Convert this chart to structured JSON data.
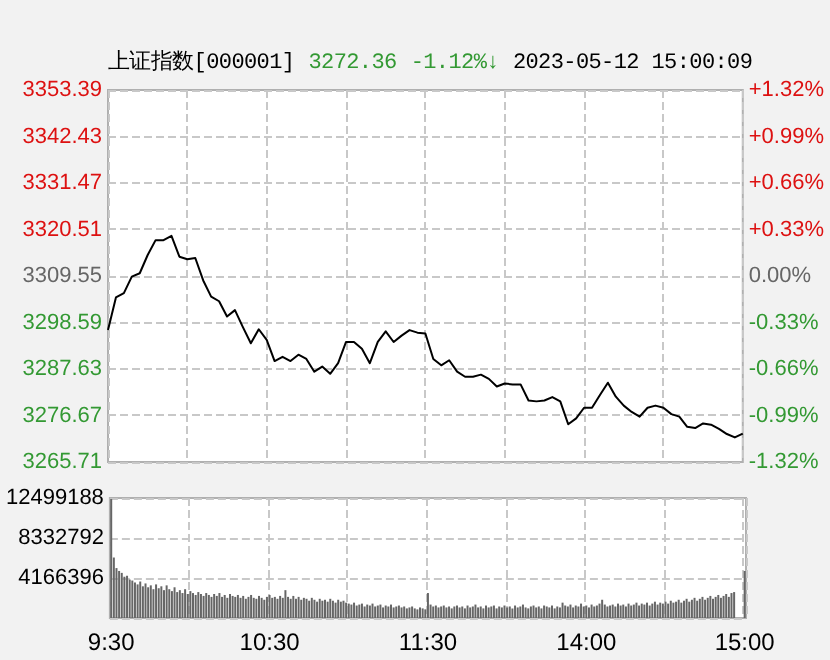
{
  "chart_data": [
    {
      "type": "line",
      "title": "上证指数[000001]",
      "annotations": [
        "3272.36",
        "-1.12%↓",
        "2023-05-12 15:00:09"
      ],
      "categories": [
        null,
        null,
        null,
        null,
        null,
        null,
        null,
        null,
        null,
        null,
        null,
        null,
        null,
        null,
        null,
        null,
        null,
        null,
        null,
        null,
        null,
        null,
        null,
        null,
        null,
        null,
        null,
        null,
        null,
        null,
        null,
        null,
        null,
        null,
        null,
        null,
        null,
        null,
        null,
        null,
        null,
        null,
        null,
        null,
        null,
        null,
        null,
        null,
        null,
        null,
        null,
        null,
        null,
        null,
        null,
        null,
        null,
        null,
        null,
        null,
        null,
        null,
        null,
        null,
        null,
        null,
        null,
        null,
        null,
        null,
        null,
        null,
        null,
        null,
        null,
        null,
        null,
        null,
        null,
        null,
        null
      ],
      "series": [
        {
          "color": "#000000",
          "values": [
            3296.8,
            3304.5,
            3305.5,
            3309.4,
            3310.2,
            3314.5,
            3318.0,
            3318.0,
            3319.0,
            3314.1,
            3313.5,
            3313.8,
            3308.5,
            3304.7,
            3303.6,
            3300.0,
            3301.5,
            3297.5,
            3293.7,
            3297.0,
            3294.5,
            3289.5,
            3290.5,
            3289.5,
            3291.0,
            3290.0,
            3287.0,
            3288.2,
            3286.5,
            3289.0,
            3294.0,
            3294.0,
            3292.4,
            3289.0,
            3294.0,
            3296.5,
            3294.0,
            3295.5,
            3296.8,
            3296.2,
            3296.0,
            3290.0,
            3288.5,
            3289.7,
            3287.0,
            3285.8,
            3285.8,
            3286.3,
            3285.3,
            3283.5,
            3284.2,
            3284.0,
            3284.0,
            3280.2,
            3280.0,
            3280.2,
            3281.0,
            3280.0,
            3274.6,
            3276.0,
            3278.5,
            3278.5,
            3281.5,
            3284.4,
            3281.1,
            3279.0,
            3277.5,
            3276.4,
            3278.5,
            3279.0,
            3278.5,
            3277.0,
            3276.4,
            3274.0,
            3273.7,
            3274.8,
            3274.5,
            3273.5,
            3272.3,
            3271.5,
            3272.4
          ]
        }
      ],
      "ylim": [
        3265.71,
        3353.39
      ],
      "yticks": [
        3265.71,
        3276.67,
        3287.63,
        3298.59,
        3309.55,
        3320.51,
        3331.47,
        3342.43,
        3353.39
      ],
      "y2lim": [
        -1.32,
        1.32
      ],
      "y2ticks": [
        {
          "value": -1.32,
          "label": "-1.32%"
        },
        {
          "value": -0.99,
          "label": "-0.99%"
        },
        {
          "value": -0.66,
          "label": "-0.66%"
        },
        {
          "value": -0.33,
          "label": "-0.33%"
        },
        {
          "value": 0,
          "label": "0.00%"
        },
        {
          "value": 0.33,
          "label": "+0.33%"
        },
        {
          "value": 0.66,
          "label": "+0.66%"
        },
        {
          "value": 0.99,
          "label": "+0.99%"
        },
        {
          "value": 1.32,
          "label": "+1.32%"
        }
      ],
      "tick_labels": "y",
      "grid": true
    },
    {
      "type": "bar",
      "categories": [
        "9:30",
        null,
        null,
        null,
        null,
        null,
        null,
        null,
        null,
        null,
        null,
        null,
        null,
        null,
        null,
        null,
        null,
        null,
        null,
        null,
        null,
        null,
        null,
        null,
        null,
        null,
        null,
        null,
        null,
        null,
        null,
        null,
        null,
        null,
        null,
        null,
        null,
        null,
        null,
        null,
        null,
        null,
        null,
        null,
        null,
        null,
        null,
        null,
        null,
        null,
        null,
        null,
        null,
        null,
        null,
        null,
        null,
        null,
        null,
        null,
        "10:30",
        null,
        null,
        null,
        null,
        null,
        null,
        null,
        null,
        null,
        null,
        null,
        null,
        null,
        null,
        null,
        null,
        null,
        null,
        null,
        null,
        null,
        null,
        null,
        null,
        null,
        null,
        null,
        null,
        null,
        null,
        null,
        null,
        null,
        null,
        null,
        null,
        null,
        null,
        null,
        null,
        null,
        null,
        null,
        null,
        null,
        null,
        null,
        null,
        null,
        null,
        null,
        null,
        null,
        null,
        null,
        null,
        null,
        null,
        null,
        "11:30",
        null,
        null,
        null,
        null,
        null,
        null,
        null,
        null,
        null,
        null,
        null,
        null,
        null,
        null,
        null,
        null,
        null,
        null,
        null,
        null,
        null,
        null,
        null,
        null,
        null,
        null,
        null,
        null,
        null,
        null,
        null,
        null,
        null,
        null,
        null,
        null,
        null,
        null,
        null,
        null,
        null,
        null,
        null,
        null,
        null,
        null,
        null,
        null,
        null,
        null,
        null,
        null,
        null,
        null,
        null,
        null,
        null,
        null,
        null,
        "14:00",
        null,
        null,
        null,
        null,
        null,
        null,
        null,
        null,
        null,
        null,
        null,
        null,
        null,
        null,
        null,
        null,
        null,
        null,
        null,
        null,
        null,
        null,
        null,
        null,
        null,
        null,
        null,
        null,
        null,
        null,
        null,
        null,
        null,
        null,
        null,
        null,
        null,
        null,
        null,
        null,
        null,
        null,
        null,
        null,
        null,
        null,
        null,
        null,
        null,
        null,
        null,
        null,
        null,
        null,
        null,
        null,
        null,
        null,
        null,
        "15:00"
      ],
      "series": [
        {
          "color": "#666666",
          "values": [
            12400000,
            6300000,
            5200000,
            4900000,
            4700000,
            4300000,
            4400000,
            4000000,
            3900000,
            3700000,
            3500000,
            3800000,
            3300000,
            3600000,
            3200000,
            3400000,
            3000000,
            3500000,
            3100000,
            3300000,
            2900000,
            3400000,
            3000000,
            2800000,
            3200000,
            2700000,
            2900000,
            2600000,
            3000000,
            2500000,
            2800000,
            2600000,
            2400000,
            2700000,
            2500000,
            2300000,
            2600000,
            2400000,
            2200000,
            2500000,
            2300000,
            2600000,
            2200000,
            2400000,
            2100000,
            2500000,
            2300000,
            2200000,
            2400000,
            2100000,
            2300000,
            2000000,
            2200000,
            2400000,
            2100000,
            2000000,
            2300000,
            2100000,
            1900000,
            2200000,
            2400000,
            2100000,
            2200000,
            2000000,
            2300000,
            2100000,
            2900000,
            2200000,
            2000000,
            2300000,
            2000000,
            2200000,
            1900000,
            2100000,
            2000000,
            1800000,
            2100000,
            1900000,
            1700000,
            2000000,
            1800000,
            1900000,
            1700000,
            2000000,
            1800000,
            1600000,
            1900000,
            1700000,
            1800000,
            1600000,
            1500000,
            1400000,
            1600000,
            1300000,
            1400000,
            1500000,
            1200000,
            1400000,
            1300000,
            1500000,
            1200000,
            1300000,
            1400000,
            1100000,
            1300000,
            1200000,
            1400000,
            1100000,
            1200000,
            1300000,
            1100000,
            1200000,
            1000000,
            1100000,
            1200000,
            1000000,
            900000,
            1100000,
            1000000,
            900000,
            2600000,
            1400000,
            1200000,
            1300000,
            1100000,
            1200000,
            1300000,
            1100000,
            1200000,
            1000000,
            1200000,
            1300000,
            1100000,
            1200000,
            1000000,
            1300000,
            1100000,
            1200000,
            1400000,
            1100000,
            1200000,
            1000000,
            1300000,
            1100000,
            1200000,
            1300000,
            1000000,
            1200000,
            1100000,
            1300000,
            1100000,
            1200000,
            1000000,
            1300000,
            1100000,
            1200000,
            1400000,
            1100000,
            1000000,
            1200000,
            1300000,
            1100000,
            1200000,
            1000000,
            1300000,
            1200000,
            1100000,
            1300000,
            1000000,
            1200000,
            1100000,
            1600000,
            1300000,
            1200000,
            1400000,
            1100000,
            1300000,
            1200000,
            1500000,
            1200000,
            1300000,
            1100000,
            1400000,
            1200000,
            1300000,
            1500000,
            1900000,
            1400000,
            1200000,
            1300000,
            1400000,
            1200000,
            1500000,
            1300000,
            1400000,
            1200000,
            1500000,
            1300000,
            1400000,
            1600000,
            1300000,
            1500000,
            1400000,
            1600000,
            1300000,
            1500000,
            1700000,
            1400000,
            1600000,
            1500000,
            1700000,
            1500000,
            1800000,
            1600000,
            1700000,
            1900000,
            1600000,
            1800000,
            2000000,
            1700000,
            1900000,
            2100000,
            1800000,
            2000000,
            2200000,
            1900000,
            2100000,
            2300000,
            2000000,
            2200000,
            2400000,
            2100000,
            2300000,
            2500000,
            2200000,
            2600000,
            2700000,
            0,
            0,
            0,
            4900000
          ]
        }
      ],
      "ylim": [
        0,
        12499188
      ],
      "yticks": [
        {
          "value": 0,
          "label": null
        },
        4166396,
        8332792,
        12499188
      ],
      "grid": true
    }
  ]
}
